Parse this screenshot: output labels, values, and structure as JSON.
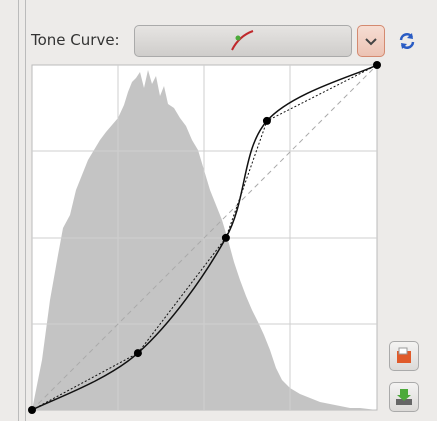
{
  "toolbar": {
    "label": "Tone Curve:"
  },
  "curve": {
    "points": [
      [
        0,
        0
      ],
      [
        0.307,
        0.165
      ],
      [
        0.562,
        0.499
      ],
      [
        0.681,
        0.838
      ],
      [
        1,
        1
      ]
    ]
  }
}
